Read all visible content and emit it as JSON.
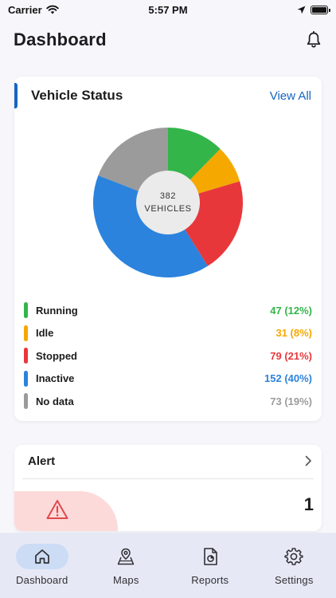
{
  "status_bar": {
    "carrier": "Carrier",
    "time": "5:57 PM"
  },
  "header": {
    "title": "Dashboard",
    "icon": "bell-icon"
  },
  "vehicle_status": {
    "title": "Vehicle Status",
    "view_all": "View All",
    "center_count": "382",
    "center_label": "VEHICLES",
    "accent_color": "#1565c0",
    "items": [
      {
        "label": "Running",
        "value": "47 (12%)",
        "count": 47,
        "color": "#33b54a"
      },
      {
        "label": "Idle",
        "value": "31 (8%)",
        "count": 31,
        "color": "#f5a800"
      },
      {
        "label": "Stopped",
        "value": "79 (21%)",
        "count": 79,
        "color": "#e8373b"
      },
      {
        "label": "Inactive",
        "value": "152 (40%)",
        "count": 152,
        "color": "#2b83dd"
      },
      {
        "label": "No data",
        "value": "73 (19%)",
        "count": 73,
        "color": "#9b9b9b"
      }
    ]
  },
  "alert": {
    "title": "Alert",
    "count": "1",
    "icon": "warning-icon",
    "blob_color": "#fddada"
  },
  "tabs": [
    {
      "label": "Dashboard",
      "icon": "home-icon",
      "active": true
    },
    {
      "label": "Maps",
      "icon": "map-icon",
      "active": false
    },
    {
      "label": "Reports",
      "icon": "report-icon",
      "active": false
    },
    {
      "label": "Settings",
      "icon": "gear-icon",
      "active": false
    }
  ]
}
